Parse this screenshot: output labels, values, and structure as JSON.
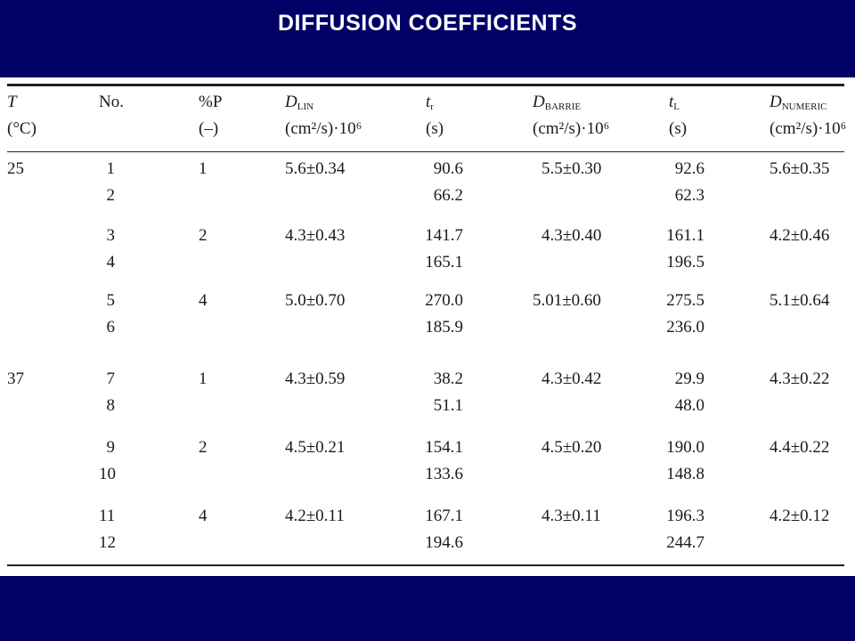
{
  "title": "DIFFUSION COEFFICIENTS",
  "table": {
    "headers": [
      {
        "sym": "T",
        "sub": "",
        "unit": "(°C)"
      },
      {
        "sym": "No.",
        "sub": "",
        "unit": ""
      },
      {
        "sym": "%P",
        "sub": "",
        "unit": "(–)"
      },
      {
        "sym": "D",
        "sub": "LIN",
        "unit": "(cm²/s)·10⁶"
      },
      {
        "sym": "t",
        "sub": "r",
        "unit": "(s)"
      },
      {
        "sym": "D",
        "sub": "BARRIE",
        "unit": "(cm²/s)·10⁶"
      },
      {
        "sym": "t",
        "sub": "L",
        "unit": "(s)"
      },
      {
        "sym": "D",
        "sub": "NUMERIC",
        "unit": "(cm²/s)·10⁶"
      }
    ],
    "groups": [
      {
        "T": "25",
        "P": "1",
        "D_lin": "5.6±0.34",
        "D_barrie": "5.5±0.30",
        "D_numeric": "5.6±0.35",
        "rows": [
          {
            "no": "1",
            "tr": "90.6",
            "tl": "92.6"
          },
          {
            "no": "2",
            "tr": "66.2",
            "tl": "62.3"
          }
        ]
      },
      {
        "T": "",
        "P": "2",
        "D_lin": "4.3±0.43",
        "D_barrie": "4.3±0.40",
        "D_numeric": "4.2±0.46",
        "rows": [
          {
            "no": "3",
            "tr": "141.7",
            "tl": "161.1"
          },
          {
            "no": "4",
            "tr": "165.1",
            "tl": "196.5"
          }
        ]
      },
      {
        "T": "",
        "P": "4",
        "D_lin": "5.0±0.70",
        "D_barrie": "5.01±0.60",
        "D_numeric": "5.1±0.64",
        "rows": [
          {
            "no": "5",
            "tr": "270.0",
            "tl": "275.5"
          },
          {
            "no": "6",
            "tr": "185.9",
            "tl": "236.0"
          }
        ]
      },
      {
        "T": "37",
        "P": "1",
        "D_lin": "4.3±0.59",
        "D_barrie": "4.3±0.42",
        "D_numeric": "4.3±0.22",
        "rows": [
          {
            "no": "7",
            "tr": "38.2",
            "tl": "29.9"
          },
          {
            "no": "8",
            "tr": "51.1",
            "tl": "48.0"
          }
        ]
      },
      {
        "T": "",
        "P": "2",
        "D_lin": "4.5±0.21",
        "D_barrie": "4.5±0.20",
        "D_numeric": "4.4±0.22",
        "rows": [
          {
            "no": "9",
            "tr": "154.1",
            "tl": "190.0"
          },
          {
            "no": "10",
            "tr": "133.6",
            "tl": "148.8"
          }
        ]
      },
      {
        "T": "",
        "P": "4",
        "D_lin": "4.2±0.11",
        "D_barrie": "4.3±0.11",
        "D_numeric": "4.2±0.12",
        "rows": [
          {
            "no": "11",
            "tr": "167.1",
            "tl": "196.3"
          },
          {
            "no": "12",
            "tr": "194.6",
            "tl": "244.7"
          }
        ]
      }
    ]
  }
}
